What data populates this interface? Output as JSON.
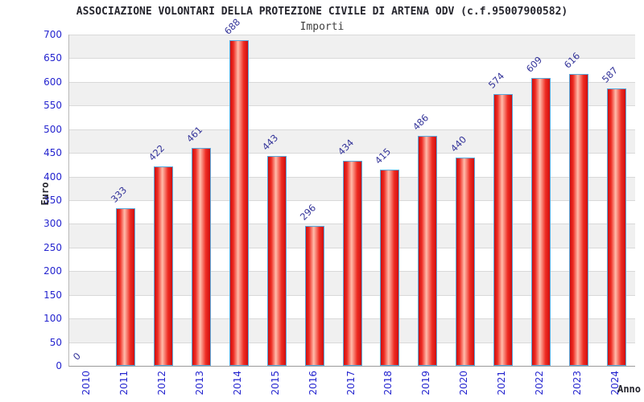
{
  "header": {
    "title": "ASSOCIAZIONE VOLONTARI DELLA PROTEZIONE CIVILE DI ARTENA ODV (c.f.95007900582)",
    "subtitle": "Importi"
  },
  "chart_data": {
    "type": "bar",
    "title": "ASSOCIAZIONE VOLONTARI DELLA PROTEZIONE CIVILE DI ARTENA ODV (c.f.95007900582)",
    "subtitle": "Importi",
    "xlabel": "Anno",
    "ylabel": "Euro",
    "categories": [
      "2010",
      "2011",
      "2012",
      "2013",
      "2014",
      "2015",
      "2016",
      "2017",
      "2018",
      "2019",
      "2020",
      "2021",
      "2022",
      "2023",
      "2024"
    ],
    "values": [
      0,
      333,
      422,
      461,
      688,
      443,
      296,
      434,
      415,
      486,
      440,
      574,
      609,
      616,
      587
    ],
    "ylim": [
      0,
      700
    ],
    "ytick_step": 50,
    "grid": "horizontal-bands",
    "legend_position": "none"
  },
  "colors": {
    "bar_fill_edge": "#cf0f0f",
    "bar_fill_center": "#ffbcab",
    "bar_border": "#58a8dc",
    "tick_label": "#2525cf",
    "value_label": "#333399",
    "band_gray": "#f0f0f0",
    "band_white": "#ffffff",
    "title_text": "#26262e"
  }
}
